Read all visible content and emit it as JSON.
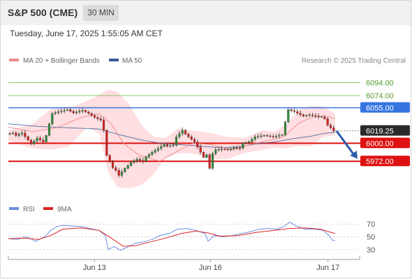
{
  "header": {
    "title": "S&P 500 (CME)",
    "timeframe": "30 MIN",
    "timestamp": "Tuesday, June 17, 2025 1:55:05 AM CET"
  },
  "colors": {
    "candle_up": "#2e8b3a",
    "candle_down": "#d42020",
    "bollinger_fill": "#ffd9dc",
    "ma20": "#f08a8a",
    "ma50": "#3a5a98",
    "resistance": "#8dc46a",
    "pivot_line": "#3575e0",
    "support": "#dd1111",
    "arrow": "#2a5aa8",
    "rsi": "#6a8ee0",
    "rsi_ma": "#dd2222"
  },
  "chart_data": [
    {
      "type": "candlestick",
      "title": "S&P 500 (CME) 30 MIN",
      "legend": [
        {
          "name": "MA 20 + Bollinger Bands",
          "color": "#f08a8a"
        },
        {
          "name": "MA 50",
          "color": "#3a5a98"
        }
      ],
      "watermark": "Research © 2025 Trading Central",
      "ylim": [
        5930,
        6114
      ],
      "x_ticks": [
        {
          "label": "Jun 13",
          "pos": 0.245
        },
        {
          "label": "Jun 16",
          "pos": 0.575
        },
        {
          "label": "Jun 17",
          "pos": 0.91
        }
      ],
      "price_levels": [
        {
          "label": "6094.00",
          "value": 6094,
          "kind": "resistance"
        },
        {
          "label": "6074.00",
          "value": 6074,
          "kind": "resistance"
        },
        {
          "label": "6055.00",
          "value": 6055,
          "kind": "pivot"
        },
        {
          "label": "6000.00",
          "value": 6000,
          "kind": "support"
        },
        {
          "label": "5972.00",
          "value": 5972,
          "kind": "support"
        }
      ],
      "last_price": {
        "label": "6019.25",
        "value": 6019.25
      },
      "forecast_arrow": {
        "from": 6019,
        "to": 5976
      },
      "close_path": [
        [
          0,
          6014
        ],
        [
          2,
          6016
        ],
        [
          3,
          6012
        ],
        [
          5,
          6016
        ],
        [
          8,
          5999
        ],
        [
          10,
          6008
        ],
        [
          12,
          6002
        ],
        [
          13,
          6012
        ],
        [
          14,
          6030
        ],
        [
          15,
          6046
        ],
        [
          17,
          6049
        ],
        [
          20,
          6052
        ],
        [
          22,
          6047
        ],
        [
          25,
          6051
        ],
        [
          27,
          6046
        ],
        [
          29,
          6040
        ],
        [
          31,
          6036
        ],
        [
          32,
          6020
        ],
        [
          33,
          5981
        ],
        [
          35,
          5962
        ],
        [
          36,
          5958
        ],
        [
          37,
          5950
        ],
        [
          39,
          5961
        ],
        [
          41,
          5970
        ],
        [
          43,
          5975
        ],
        [
          45,
          5972
        ],
        [
          46,
          5979
        ],
        [
          48,
          5986
        ],
        [
          50,
          5992
        ],
        [
          52,
          5998
        ],
        [
          53,
          5995
        ],
        [
          55,
          5997
        ],
        [
          56,
          6010
        ],
        [
          58,
          6020
        ],
        [
          59,
          6014
        ],
        [
          60,
          6010
        ],
        [
          62,
          6002
        ],
        [
          64,
          5986
        ],
        [
          65,
          5978
        ],
        [
          66,
          5982
        ],
        [
          67,
          5961
        ],
        [
          68,
          5984
        ],
        [
          69,
          5990
        ],
        [
          71,
          5991
        ],
        [
          73,
          5990
        ],
        [
          75,
          5993
        ],
        [
          77,
          5992
        ],
        [
          78,
          6000
        ],
        [
          80,
          6002
        ],
        [
          82,
          6010
        ],
        [
          85,
          6012
        ],
        [
          88,
          6010
        ],
        [
          91,
          6013
        ],
        [
          92,
          6033
        ],
        [
          93,
          6052
        ],
        [
          95,
          6049
        ],
        [
          98,
          6042
        ],
        [
          100,
          6044
        ],
        [
          103,
          6041
        ],
        [
          104,
          6041
        ],
        [
          105,
          6038
        ],
        [
          106,
          6028
        ],
        [
          107,
          6024
        ],
        [
          108,
          6019.25
        ]
      ],
      "ma20_path": [
        [
          0,
          6025
        ],
        [
          8,
          6018
        ],
        [
          16,
          6024
        ],
        [
          24,
          6040
        ],
        [
          30,
          6046
        ],
        [
          34,
          6030
        ],
        [
          38,
          6000
        ],
        [
          43,
          5982
        ],
        [
          50,
          5972
        ],
        [
          56,
          5988
        ],
        [
          61,
          6000
        ],
        [
          67,
          5998
        ],
        [
          74,
          5990
        ],
        [
          80,
          5998
        ],
        [
          86,
          6004
        ],
        [
          91,
          6010
        ],
        [
          96,
          6031
        ],
        [
          100,
          6040
        ],
        [
          104,
          6043
        ],
        [
          108,
          6038
        ]
      ],
      "ma50_path": [
        [
          0,
          6030
        ],
        [
          10,
          6026
        ],
        [
          20,
          6024
        ],
        [
          30,
          6022
        ],
        [
          36,
          6014
        ],
        [
          44,
          6005
        ],
        [
          50,
          6000
        ],
        [
          56,
          5998
        ],
        [
          62,
          5996
        ],
        [
          70,
          5993
        ],
        [
          76,
          5994
        ],
        [
          82,
          5999
        ],
        [
          88,
          6002
        ],
        [
          94,
          6007
        ],
        [
          100,
          6011
        ],
        [
          104,
          6015
        ],
        [
          108,
          6017
        ]
      ],
      "bollinger_upper": [
        [
          0,
          6020
        ],
        [
          8,
          6030
        ],
        [
          14,
          6053
        ],
        [
          22,
          6058
        ],
        [
          28,
          6070
        ],
        [
          33,
          6083
        ],
        [
          36,
          6080
        ],
        [
          40,
          6060
        ],
        [
          44,
          6028
        ],
        [
          48,
          6010
        ],
        [
          52,
          6008
        ],
        [
          56,
          6023
        ],
        [
          60,
          6020
        ],
        [
          64,
          6018
        ],
        [
          68,
          6015
        ],
        [
          72,
          6010
        ],
        [
          78,
          6008
        ],
        [
          84,
          6020
        ],
        [
          88,
          6018
        ],
        [
          92,
          6030
        ],
        [
          96,
          6052
        ],
        [
          100,
          6058
        ],
        [
          104,
          6057
        ],
        [
          108,
          6046
        ]
      ],
      "bollinger_lower": [
        [
          0,
          6004
        ],
        [
          8,
          5992
        ],
        [
          14,
          5990
        ],
        [
          20,
          5995
        ],
        [
          26,
          6025
        ],
        [
          30,
          6015
        ],
        [
          33,
          5955
        ],
        [
          36,
          5932
        ],
        [
          40,
          5930
        ],
        [
          44,
          5935
        ],
        [
          48,
          5952
        ],
        [
          52,
          5978
        ],
        [
          56,
          5984
        ],
        [
          60,
          5985
        ],
        [
          64,
          5980
        ],
        [
          68,
          5975
        ],
        [
          72,
          5975
        ],
        [
          78,
          5985
        ],
        [
          84,
          5990
        ],
        [
          88,
          5993
        ],
        [
          92,
          5992
        ],
        [
          96,
          5996
        ],
        [
          100,
          5995
        ],
        [
          104,
          6010
        ],
        [
          108,
          6012
        ]
      ]
    },
    {
      "type": "line",
      "legend": [
        {
          "name": "RSI",
          "color": "#6a8ee0"
        },
        {
          "name": "9MA",
          "color": "#dd2222"
        }
      ],
      "ylim": [
        20,
        80
      ],
      "y_ticks": [
        {
          "label": "70",
          "value": 70
        },
        {
          "label": "50",
          "value": 50
        },
        {
          "label": "30",
          "value": 30
        }
      ],
      "series": [
        {
          "name": "RSI",
          "values": [
            [
              0,
              47
            ],
            [
              3,
              46
            ],
            [
              6,
              50
            ],
            [
              9,
              43
            ],
            [
              12,
              50
            ],
            [
              14,
              60
            ],
            [
              16,
              66
            ],
            [
              18,
              68
            ],
            [
              21,
              67
            ],
            [
              24,
              66
            ],
            [
              27,
              63
            ],
            [
              30,
              60
            ],
            [
              32,
              52
            ],
            [
              33,
              30
            ],
            [
              35,
              35
            ],
            [
              37,
              29
            ],
            [
              39,
              33
            ],
            [
              42,
              40
            ],
            [
              45,
              42
            ],
            [
              48,
              47
            ],
            [
              50,
              52
            ],
            [
              53,
              55
            ],
            [
              56,
              62
            ],
            [
              59,
              63
            ],
            [
              62,
              60
            ],
            [
              65,
              55
            ],
            [
              66,
              43
            ],
            [
              68,
              52
            ],
            [
              71,
              50
            ],
            [
              74,
              52
            ],
            [
              77,
              55
            ],
            [
              80,
              58
            ],
            [
              83,
              62
            ],
            [
              86,
              63
            ],
            [
              89,
              62
            ],
            [
              91,
              66
            ],
            [
              93,
              73
            ],
            [
              95,
              67
            ],
            [
              98,
              62
            ],
            [
              101,
              62
            ],
            [
              104,
              60
            ],
            [
              106,
              52
            ],
            [
              107,
              45
            ],
            [
              108,
              44
            ]
          ]
        },
        {
          "name": "9MA",
          "values": [
            [
              0,
              47
            ],
            [
              5,
              48
            ],
            [
              10,
              46
            ],
            [
              14,
              52
            ],
            [
              18,
              62
            ],
            [
              24,
              64
            ],
            [
              30,
              60
            ],
            [
              34,
              48
            ],
            [
              38,
              35
            ],
            [
              42,
              36
            ],
            [
              47,
              42
            ],
            [
              52,
              48
            ],
            [
              57,
              55
            ],
            [
              62,
              59
            ],
            [
              66,
              56
            ],
            [
              70,
              51
            ],
            [
              76,
              52
            ],
            [
              82,
              57
            ],
            [
              88,
              60
            ],
            [
              93,
              63
            ],
            [
              98,
              64
            ],
            [
              103,
              62
            ],
            [
              108,
              55
            ]
          ]
        }
      ]
    }
  ]
}
